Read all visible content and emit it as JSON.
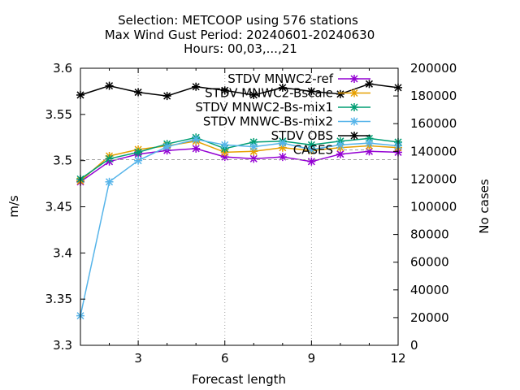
{
  "chart_data": {
    "type": "line",
    "title_lines": [
      "Selection: METCOOP using    576 stations",
      "Max Wind Gust   Period: 20240601-20240630",
      "Hours: 00,03,...,21"
    ],
    "xlabel": "Forecast length",
    "ylabel": "m/s",
    "y2label": "No cases",
    "xlim": [
      1,
      12
    ],
    "ylim": [
      3.3,
      3.6
    ],
    "y2lim": [
      0,
      200000
    ],
    "xticks": [
      3,
      6,
      9,
      12
    ],
    "xtick_labels": [
      "3",
      "6",
      "9",
      "12"
    ],
    "yticks": [
      3.3,
      3.35,
      3.4,
      3.45,
      3.5,
      3.55,
      3.6
    ],
    "ytick_labels": [
      "3.3",
      "3.35",
      "3.4",
      "3.45",
      "3.5",
      "3.55",
      "3.6"
    ],
    "y2ticks": [
      0,
      20000,
      40000,
      60000,
      80000,
      100000,
      120000,
      140000,
      160000,
      180000,
      200000
    ],
    "y2tick_labels": [
      "0",
      "20000",
      "40000",
      "60000",
      "80000",
      "100000",
      "120000",
      "140000",
      "160000",
      "180000",
      "200000"
    ],
    "x": [
      1,
      2,
      3,
      4,
      5,
      6,
      7,
      8,
      9,
      10,
      11,
      12
    ],
    "legend_position": "top-right",
    "series": [
      {
        "name": "STDV MNWC2-ref",
        "color": "#9400d3",
        "axis": "y1",
        "values": [
          3.477,
          3.499,
          3.507,
          3.511,
          3.513,
          3.504,
          3.502,
          3.504,
          3.499,
          3.507,
          3.51,
          3.509
        ]
      },
      {
        "name": "STDV MNWC2-Bscale",
        "color": "#e69f00",
        "axis": "y1",
        "values": [
          3.478,
          3.505,
          3.512,
          3.516,
          3.521,
          3.509,
          3.51,
          3.514,
          3.511,
          3.514,
          3.516,
          3.514
        ]
      },
      {
        "name": "STDV MNWC2-Bs-mix1",
        "color": "#009e73",
        "axis": "y1",
        "values": [
          3.48,
          3.502,
          3.509,
          3.518,
          3.525,
          3.513,
          3.52,
          3.521,
          3.517,
          3.521,
          3.524,
          3.52
        ]
      },
      {
        "name": "STDV MNWC-Bs-mix2",
        "color": "#56b4e9",
        "axis": "y1",
        "values": [
          3.332,
          3.477,
          3.5,
          3.515,
          3.523,
          3.517,
          3.515,
          3.519,
          3.512,
          3.517,
          3.519,
          3.516
        ]
      },
      {
        "name": "STDV OBS",
        "color": "#000000",
        "axis": "y1",
        "values": [
          3.571,
          3.581,
          3.574,
          3.57,
          3.58,
          3.576,
          3.571,
          3.579,
          3.575,
          3.572,
          3.583,
          3.579
        ]
      },
      {
        "name": "CASES",
        "color": "#a0a0a0",
        "axis": "y2",
        "dashed": true,
        "values": [
          134000,
          134000,
          134000,
          134000,
          134000,
          134000,
          134000,
          134000,
          134000,
          134000,
          134000,
          134000
        ]
      }
    ]
  }
}
